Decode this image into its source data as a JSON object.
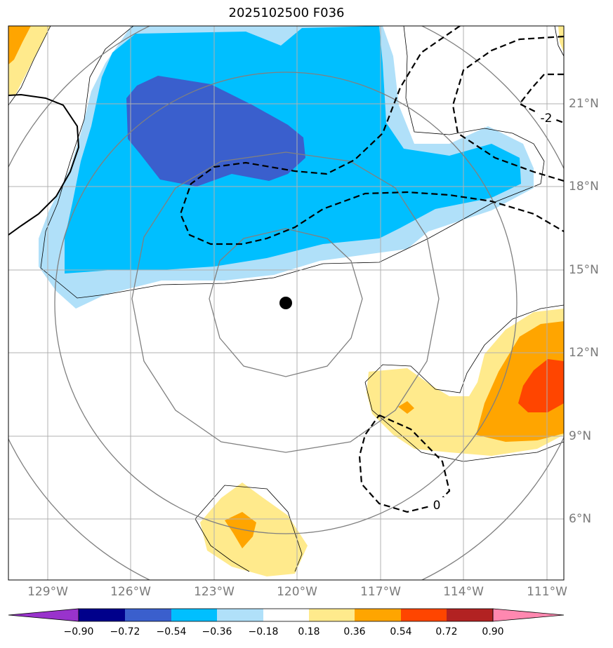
{
  "title": "2025102500 F036",
  "colors": {
    "minus_090": "#9933cc",
    "minus_090_072": "#00008b",
    "minus_072_054": "#3a5fcd",
    "minus_054_036": "#00bfff",
    "minus_036_018": "#b0e0f9",
    "neutral": "#ffffff",
    "plus_018_036": "#ffea8c",
    "plus_036_054": "#ffa500",
    "plus_054_072": "#ff4500",
    "plus_072_090": "#b22222",
    "plus_090": "#ff88b0",
    "range_rings": "#808080",
    "grid": "#b0b0b0",
    "center_marker": "#000000"
  },
  "map": {
    "longitude_labels": [
      "129°W",
      "126°W",
      "123°W",
      "120°W",
      "117°W",
      "114°W",
      "111°W"
    ],
    "latitude_labels": [
      "21°N",
      "18°N",
      "15°N",
      "12°N",
      "9°N",
      "6°N"
    ],
    "contour_labels": [
      "-2",
      "0"
    ]
  },
  "colorbar": {
    "ticks": [
      "−0.90",
      "−0.72",
      "−0.54",
      "−0.36",
      "−0.18",
      "0.18",
      "0.36",
      "0.54",
      "0.72",
      "0.90"
    ]
  }
}
